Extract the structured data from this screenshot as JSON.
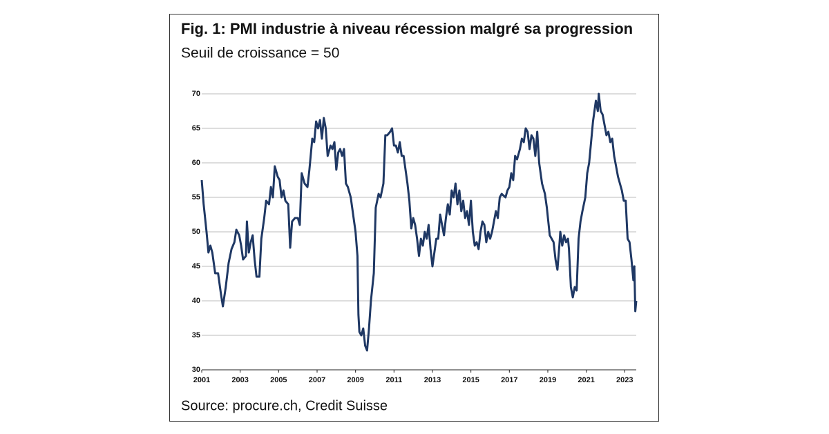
{
  "chart_data": {
    "type": "line",
    "title": "Fig. 1: PMI industrie à niveau récession malgré sa progression",
    "subtitle": "Seuil de croissance = 50",
    "source": "Source: procure.ch, Credit Suisse",
    "x": [
      2001.0,
      2001.1,
      2001.25,
      2001.35,
      2001.45,
      2001.55,
      2001.7,
      2001.85,
      2002.0,
      2002.1,
      2002.25,
      2002.4,
      2002.55,
      2002.7,
      2002.8,
      2002.95,
      2003.05,
      2003.15,
      2003.3,
      2003.35,
      2003.45,
      2003.55,
      2003.65,
      2003.75,
      2003.85,
      2004.0,
      2004.1,
      2004.25,
      2004.35,
      2004.5,
      2004.6,
      2004.7,
      2004.8,
      2004.95,
      2005.05,
      2005.15,
      2005.25,
      2005.35,
      2005.5,
      2005.6,
      2005.7,
      2005.85,
      2006.0,
      2006.1,
      2006.2,
      2006.35,
      2006.5,
      2006.6,
      2006.75,
      2006.85,
      2006.95,
      2007.05,
      2007.15,
      2007.25,
      2007.35,
      2007.45,
      2007.55,
      2007.7,
      2007.8,
      2007.9,
      2008.0,
      2008.1,
      2008.2,
      2008.3,
      2008.4,
      2008.5,
      2008.6,
      2008.75,
      2008.9,
      2009.0,
      2009.1,
      2009.15,
      2009.2,
      2009.3,
      2009.4,
      2009.5,
      2009.6,
      2009.7,
      2009.8,
      2009.95,
      2010.05,
      2010.2,
      2010.3,
      2010.45,
      2010.55,
      2010.65,
      2010.8,
      2010.9,
      2011.0,
      2011.1,
      2011.2,
      2011.3,
      2011.4,
      2011.5,
      2011.6,
      2011.7,
      2011.8,
      2011.9,
      2012.0,
      2012.1,
      2012.2,
      2012.3,
      2012.4,
      2012.5,
      2012.6,
      2012.7,
      2012.8,
      2012.9,
      2013.0,
      2013.1,
      2013.2,
      2013.3,
      2013.4,
      2013.5,
      2013.6,
      2013.7,
      2013.8,
      2013.9,
      2014.0,
      2014.1,
      2014.2,
      2014.3,
      2014.4,
      2014.5,
      2014.6,
      2014.7,
      2014.8,
      2014.9,
      2015.0,
      2015.1,
      2015.2,
      2015.3,
      2015.4,
      2015.5,
      2015.6,
      2015.7,
      2015.8,
      2015.9,
      2016.0,
      2016.1,
      2016.2,
      2016.3,
      2016.4,
      2016.5,
      2016.6,
      2016.8,
      2016.9,
      2017.0,
      2017.1,
      2017.2,
      2017.3,
      2017.4,
      2017.55,
      2017.65,
      2017.75,
      2017.85,
      2017.95,
      2018.05,
      2018.15,
      2018.25,
      2018.35,
      2018.45,
      2018.55,
      2018.7,
      2018.85,
      2018.95,
      2019.1,
      2019.2,
      2019.3,
      2019.4,
      2019.5,
      2019.6,
      2019.65,
      2019.75,
      2019.85,
      2019.95,
      2020.05,
      2020.1,
      2020.2,
      2020.3,
      2020.4,
      2020.5,
      2020.6,
      2020.7,
      2020.8,
      2020.95,
      2021.05,
      2021.15,
      2021.25,
      2021.35,
      2021.45,
      2021.5,
      2021.6,
      2021.65,
      2021.75,
      2021.85,
      2021.95,
      2022.05,
      2022.15,
      2022.25,
      2022.35,
      2022.45,
      2022.55,
      2022.65,
      2022.75,
      2022.85,
      2022.95,
      2023.05,
      2023.15,
      2023.25,
      2023.35,
      2023.4,
      2023.45,
      2023.5,
      2023.55,
      2023.6
    ],
    "series": [
      {
        "name": "PMI",
        "color": "#1f3864",
        "values": [
          57.5,
          54,
          50,
          47,
          48,
          47,
          44,
          44,
          41,
          39.2,
          42,
          45.5,
          47.5,
          48.5,
          50.3,
          49.5,
          48,
          46,
          46.5,
          51.5,
          47,
          48.5,
          49.5,
          46,
          43.5,
          43.5,
          49,
          52,
          54.5,
          54,
          56.5,
          55,
          59.5,
          58,
          57.5,
          55,
          56,
          54.5,
          54,
          47.7,
          51.5,
          52,
          52,
          51,
          58.5,
          57,
          56.5,
          59,
          63.5,
          63,
          66,
          65,
          66.2,
          63.5,
          66.5,
          65,
          61,
          62.5,
          62,
          63,
          59,
          61.5,
          62,
          61,
          62,
          57,
          56.5,
          55,
          52,
          50,
          46.5,
          38,
          35.5,
          35,
          36,
          33.5,
          32.8,
          36,
          40,
          44,
          53.5,
          55.5,
          55,
          57,
          64,
          64,
          64.5,
          65,
          62.5,
          62.5,
          61.5,
          63,
          61,
          61,
          59,
          57,
          54.5,
          50.5,
          52,
          51,
          49,
          46.5,
          49,
          48,
          50,
          49,
          51,
          47.5,
          45,
          47,
          49,
          49,
          52.5,
          51,
          49.5,
          52,
          54,
          52.5,
          56,
          55,
          57,
          54,
          56,
          53,
          54.5,
          52,
          53,
          51,
          54.5,
          50,
          48,
          48.5,
          47.5,
          50,
          51.5,
          51,
          48.5,
          50,
          49,
          50,
          51.5,
          53,
          52,
          55,
          55.5,
          55,
          56,
          56.5,
          58.5,
          57.5,
          61,
          60.5,
          62,
          63.5,
          63,
          65,
          64.5,
          62,
          64,
          63.5,
          61,
          64.5,
          60,
          57,
          55.5,
          53.5,
          49.5,
          49,
          48.5,
          46,
          44.5,
          48,
          50,
          48,
          49.5,
          48.5,
          49,
          47.5,
          42,
          40.5,
          42,
          41.5,
          49,
          51.5,
          53,
          55,
          58.5,
          60,
          63,
          66,
          68,
          69,
          67.5,
          70,
          67.5,
          67,
          65.5,
          64,
          64.5,
          63,
          63.5,
          61,
          59.5,
          58,
          57,
          56,
          54.5,
          54.5,
          49,
          48.5,
          46,
          44.5,
          43,
          45,
          38.5,
          40
        ]
      }
    ],
    "xlim": [
      2001,
      2023.6
    ],
    "xticks": [
      2001,
      2003,
      2005,
      2007,
      2009,
      2011,
      2013,
      2015,
      2017,
      2019,
      2021,
      2023
    ],
    "ylim": [
      30,
      70
    ],
    "yticks": [
      30,
      35,
      40,
      45,
      50,
      55,
      60,
      65,
      70
    ],
    "grid": true
  }
}
